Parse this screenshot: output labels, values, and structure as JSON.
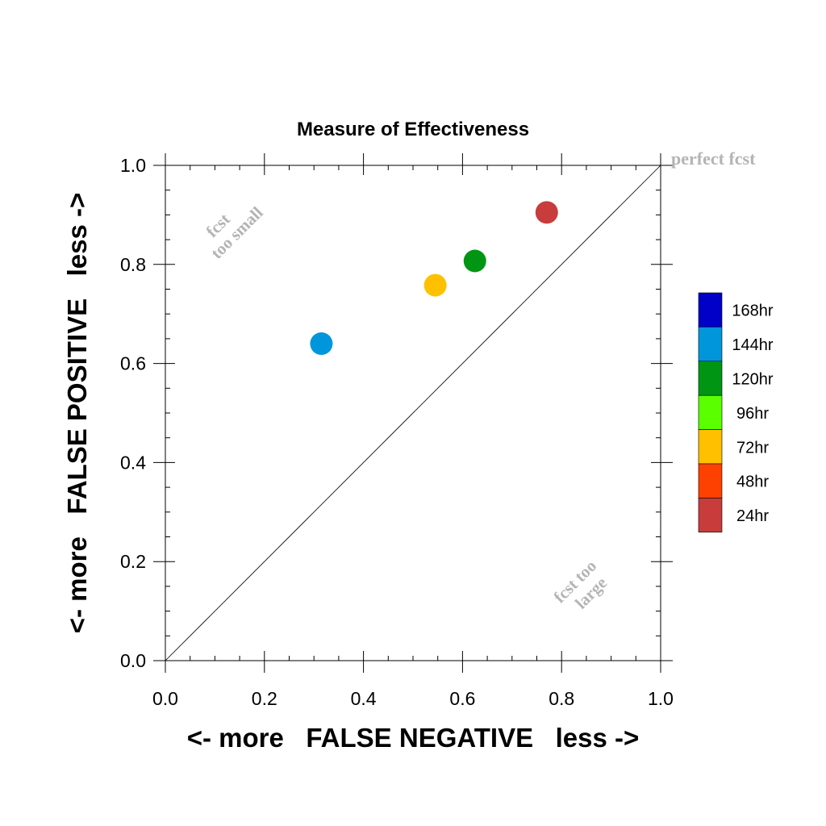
{
  "chart_data": {
    "type": "scatter",
    "title": "Measure of Effectiveness",
    "xlabel": "<- more   FALSE NEGATIVE   less ->",
    "ylabel": "<- more   FALSE POSITIVE   less ->",
    "xlim": [
      0.0,
      1.0
    ],
    "ylim": [
      0.0,
      1.0
    ],
    "x_ticks": [
      "0.0",
      "0.2",
      "0.4",
      "0.6",
      "0.8",
      "1.0"
    ],
    "y_ticks": [
      "0.0",
      "0.2",
      "0.4",
      "0.6",
      "0.8",
      "1.0"
    ],
    "tick_values": [
      0.0,
      0.2,
      0.4,
      0.6,
      0.8,
      1.0
    ],
    "minor_tick_step": 0.05,
    "grid": false,
    "diagonal_line": true,
    "annotations": {
      "perfect": "perfect fcst",
      "too_small_line1": "fcst",
      "too_small_line2": "too small",
      "too_large_line1": "fcst too",
      "too_large_line2": "large"
    },
    "annotation_color": "#b4b4b4",
    "points": [
      {
        "label": "144hr",
        "x": 0.315,
        "y": 0.64,
        "color": "#0096dc"
      },
      {
        "label": "72hr",
        "x": 0.545,
        "y": 0.758,
        "color": "#ffc000"
      },
      {
        "label": "120hr",
        "x": 0.625,
        "y": 0.807,
        "color": "#009614"
      },
      {
        "label": "24hr",
        "x": 0.77,
        "y": 0.905,
        "color": "#c83c3c"
      }
    ],
    "legend": {
      "placement": "right",
      "items": [
        {
          "label": "168hr",
          "color": "#0000c8"
        },
        {
          "label": "144hr",
          "color": "#0096dc"
        },
        {
          "label": "120hr",
          "color": "#009614"
        },
        {
          "label": "96hr",
          "color": "#5aff00"
        },
        {
          "label": "72hr",
          "color": "#ffc000"
        },
        {
          "label": "48hr",
          "color": "#ff4100"
        },
        {
          "label": "24hr",
          "color": "#c83c3c"
        }
      ]
    }
  }
}
